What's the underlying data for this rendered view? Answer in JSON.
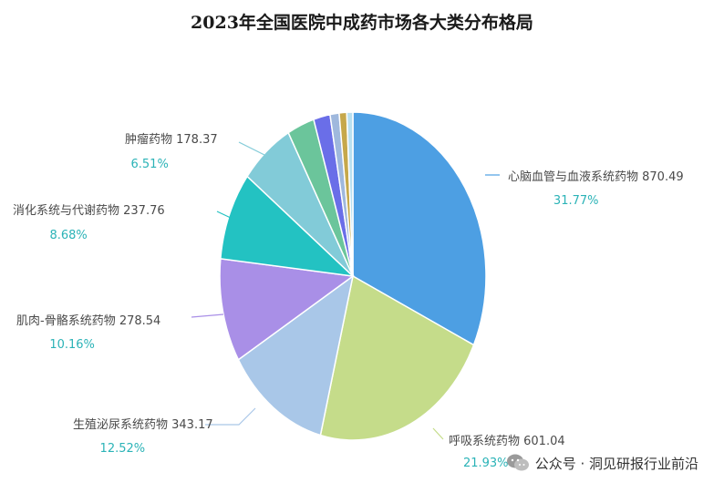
{
  "chart_data": {
    "type": "pie",
    "title": "2023年全国医院中成药市场各大类分布格局",
    "slices": [
      {
        "label": "心脑血管与血液系统药物",
        "value": 870.49,
        "value_label": "870.49",
        "percent_label": "31.77%",
        "color": "#4d9fe3"
      },
      {
        "label": "呼吸系统药物",
        "value": 601.04,
        "value_label": "601.04",
        "percent_label": "21.93%",
        "color": "#c5dc8a"
      },
      {
        "label": "生殖泌尿系统药物",
        "value": 343.17,
        "value_label": "343.17",
        "percent_label": "12.52%",
        "color": "#a9c7e8"
      },
      {
        "label": "肌肉-骨骼系统药物",
        "value": 278.54,
        "value_label": "278.54",
        "percent_label": "10.16%",
        "color": "#a98fe7"
      },
      {
        "label": "消化系统与代谢药物",
        "value": 237.76,
        "value_label": "237.76",
        "percent_label": "8.68%",
        "color": "#23c2c2"
      },
      {
        "label": "肿瘤药物",
        "value": 178.37,
        "value_label": "178.37",
        "percent_label": "6.51%",
        "color": "#82cbd8"
      },
      {
        "label": "",
        "value": 90,
        "value_label": "",
        "percent_label": "",
        "color": "#6bc59b"
      },
      {
        "label": "",
        "value": 55,
        "value_label": "",
        "percent_label": "",
        "color": "#6a6ee8"
      },
      {
        "label": "",
        "value": 30,
        "value_label": "",
        "percent_label": "",
        "color": "#9fb8dd"
      },
      {
        "label": "",
        "value": 25,
        "value_label": "",
        "percent_label": "",
        "color": "#c6a84b"
      },
      {
        "label": "",
        "value": 20,
        "value_label": "",
        "percent_label": "",
        "color": "#b8dff0"
      }
    ]
  },
  "footer": {
    "text": "公众号 · 洞见研报行业前沿"
  }
}
